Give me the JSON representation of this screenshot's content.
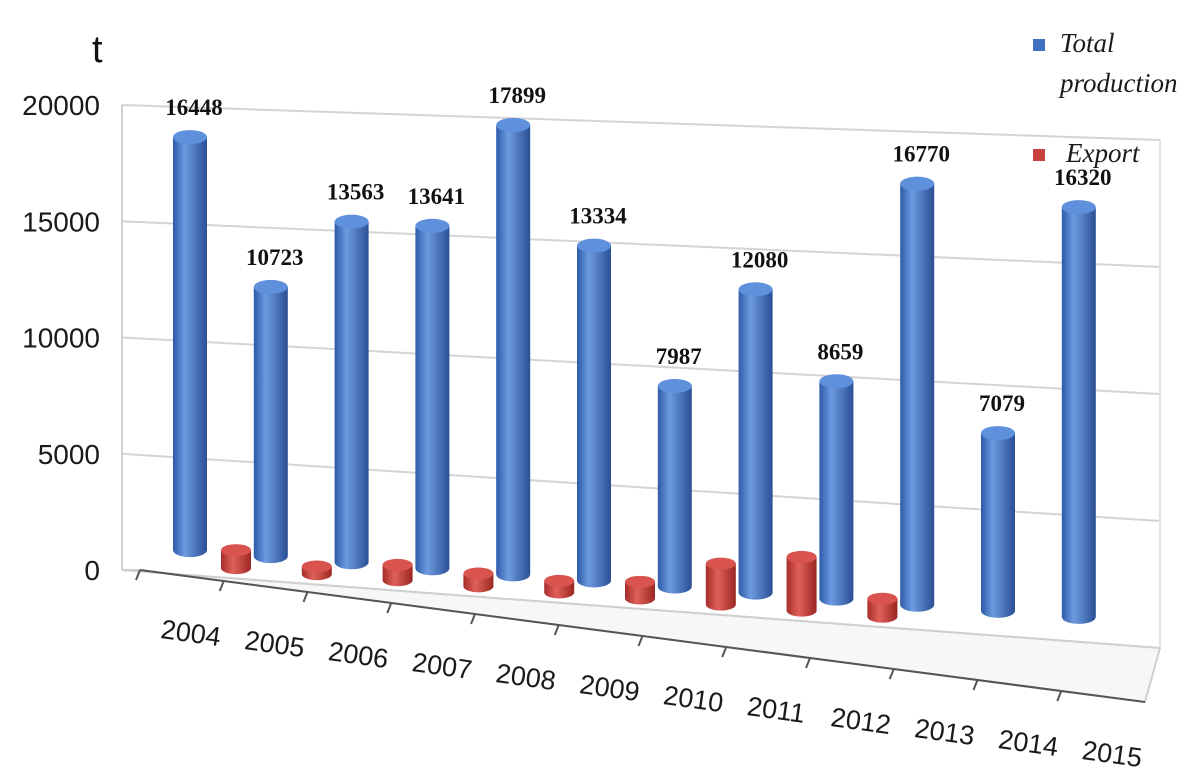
{
  "chart_data": {
    "type": "bar",
    "categories": [
      "2004",
      "2005",
      "2006",
      "2007",
      "2008",
      "2009",
      "2010",
      "2011",
      "2012",
      "2013",
      "2014",
      "2015"
    ],
    "series": [
      {
        "name": "Total production",
        "color": "#3f6fc1",
        "values": [
          16448,
          10723,
          13563,
          13641,
          17899,
          13334,
          7987,
          12080,
          8659,
          16770,
          7079,
          16320
        ],
        "labels": [
          "16448",
          "10723",
          "13563",
          "13641",
          "17899",
          "13334",
          "7987",
          "12080",
          "8659",
          "16770",
          "7079",
          "16320"
        ]
      },
      {
        "name": "Export",
        "color": "#c8403b",
        "values": [
          700,
          300,
          600,
          500,
          450,
          650,
          1600,
          2100,
          700,
          0,
          0,
          0
        ]
      }
    ],
    "y_ticks": [
      "0",
      "5000",
      "10000",
      "15000",
      "20000"
    ],
    "ylim": [
      0,
      20000
    ],
    "ylabel": "t",
    "legend_position": "top-right",
    "grid": true
  }
}
